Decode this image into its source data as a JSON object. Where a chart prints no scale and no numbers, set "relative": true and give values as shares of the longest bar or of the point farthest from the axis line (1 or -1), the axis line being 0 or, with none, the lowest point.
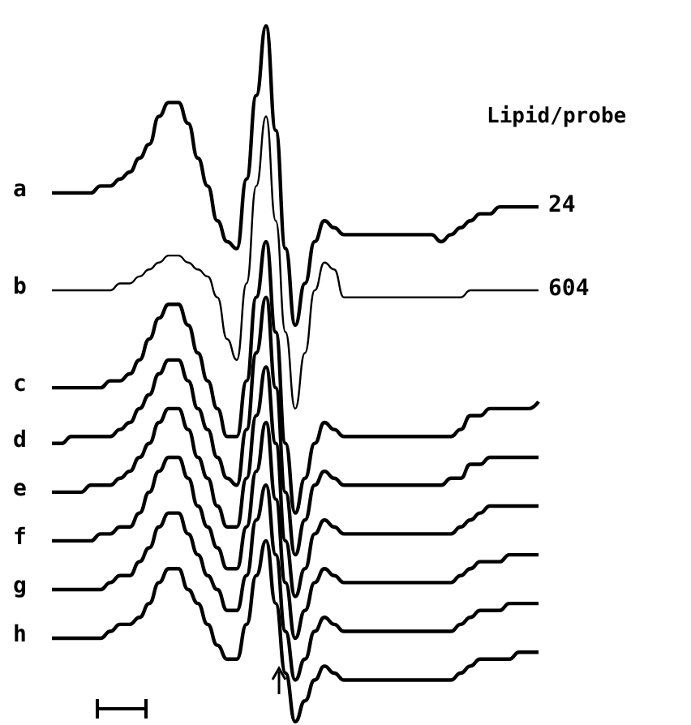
{
  "chart_data": {
    "type": "line",
    "relative": true,
    "marker": "none",
    "categories": [
      null,
      null,
      null,
      null,
      null,
      null,
      null,
      null,
      null,
      null,
      null,
      null,
      null,
      null,
      null,
      null,
      null,
      null,
      null,
      null,
      null,
      null,
      null,
      null,
      null,
      null,
      null,
      null,
      null,
      null,
      null,
      null,
      null,
      null,
      null,
      null,
      null,
      null,
      null,
      null,
      null,
      null,
      null,
      null,
      null,
      null,
      null,
      null,
      null,
      null,
      null
    ],
    "annotations": [
      "Lipid/probe",
      "24",
      "604"
    ],
    "series": [
      {
        "name": "a",
        "color": "#000000",
        "values": [
          0.76,
          0.76,
          0.76,
          0.76,
          0.76,
          0.77,
          0.77,
          0.78,
          0.79,
          0.81,
          0.83,
          0.87,
          0.89,
          0.89,
          0.86,
          0.81,
          0.77,
          0.72,
          0.69,
          0.68,
          0.78,
          0.9,
          1,
          0.85,
          0.68,
          0.57,
          0.63,
          0.69,
          0.72,
          0.71,
          0.7,
          0.7,
          0.7,
          0.7,
          0.7,
          0.7,
          0.7,
          0.7,
          0.7,
          0.7,
          0.69,
          0.7,
          0.71,
          0.72,
          0.73,
          0.73,
          0.74,
          0.74,
          0.74,
          0.74,
          0.74
        ]
      },
      {
        "name": "b",
        "color": "#000000",
        "values": [
          0.62,
          0.62,
          0.62,
          0.62,
          0.62,
          0.62,
          0.62,
          0.63,
          0.63,
          0.64,
          0.65,
          0.66,
          0.67,
          0.67,
          0.66,
          0.65,
          0.64,
          0.61,
          0.55,
          0.52,
          0.63,
          0.77,
          0.87,
          0.72,
          0.56,
          0.45,
          0.53,
          0.62,
          0.66,
          0.65,
          0.61,
          0.61,
          0.61,
          0.61,
          0.61,
          0.61,
          0.61,
          0.61,
          0.61,
          0.61,
          0.61,
          0.61,
          0.61,
          0.62,
          0.62,
          0.62,
          0.62,
          0.62,
          0.62,
          0.62,
          0.62
        ]
      },
      {
        "name": "c",
        "color": "#000000",
        "values": [
          0.48,
          0.48,
          0.48,
          0.48,
          0.48,
          0.48,
          0.49,
          0.49,
          0.5,
          0.52,
          0.55,
          0.58,
          0.6,
          0.6,
          0.57,
          0.53,
          0.49,
          0.45,
          0.41,
          0.41,
          0.49,
          0.61,
          0.69,
          0.56,
          0.4,
          0.3,
          0.35,
          0.4,
          0.43,
          0.42,
          0.41,
          0.41,
          0.41,
          0.41,
          0.41,
          0.41,
          0.41,
          0.41,
          0.41,
          0.41,
          0.41,
          0.41,
          0.42,
          0.44,
          0.44,
          0.45,
          0.45,
          0.45,
          0.45,
          0.45,
          0.46
        ]
      },
      {
        "name": "d",
        "color": "#000000",
        "values": [
          0.4,
          0.4,
          0.41,
          0.41,
          0.41,
          0.41,
          0.41,
          0.42,
          0.43,
          0.45,
          0.47,
          0.5,
          0.52,
          0.52,
          0.49,
          0.45,
          0.42,
          0.38,
          0.35,
          0.34,
          0.42,
          0.53,
          0.61,
          0.48,
          0.33,
          0.24,
          0.29,
          0.34,
          0.36,
          0.35,
          0.34,
          0.34,
          0.34,
          0.34,
          0.34,
          0.34,
          0.34,
          0.34,
          0.34,
          0.34,
          0.34,
          0.35,
          0.35,
          0.37,
          0.37,
          0.38,
          0.38,
          0.38,
          0.38,
          0.38,
          0.38
        ]
      },
      {
        "name": "e",
        "color": "#000000",
        "values": [
          0.33,
          0.33,
          0.33,
          0.33,
          0.34,
          0.34,
          0.34,
          0.35,
          0.36,
          0.38,
          0.4,
          0.43,
          0.45,
          0.45,
          0.42,
          0.38,
          0.35,
          0.31,
          0.28,
          0.28,
          0.35,
          0.44,
          0.51,
          0.4,
          0.26,
          0.18,
          0.22,
          0.27,
          0.29,
          0.28,
          0.27,
          0.27,
          0.27,
          0.27,
          0.27,
          0.27,
          0.27,
          0.27,
          0.27,
          0.27,
          0.27,
          0.27,
          0.28,
          0.29,
          0.3,
          0.31,
          0.31,
          0.31,
          0.31,
          0.31,
          0.31
        ]
      },
      {
        "name": "f",
        "color": "#000000",
        "values": [
          0.26,
          0.26,
          0.26,
          0.26,
          0.26,
          0.27,
          0.27,
          0.28,
          0.28,
          0.3,
          0.33,
          0.36,
          0.38,
          0.38,
          0.35,
          0.31,
          0.28,
          0.25,
          0.22,
          0.22,
          0.28,
          0.36,
          0.43,
          0.32,
          0.2,
          0.12,
          0.16,
          0.2,
          0.22,
          0.21,
          0.2,
          0.2,
          0.2,
          0.2,
          0.2,
          0.2,
          0.2,
          0.2,
          0.2,
          0.2,
          0.2,
          0.2,
          0.21,
          0.22,
          0.23,
          0.23,
          0.23,
          0.24,
          0.24,
          0.24,
          0.24
        ]
      },
      {
        "name": "g",
        "color": "#000000",
        "values": [
          0.19,
          0.19,
          0.19,
          0.19,
          0.19,
          0.19,
          0.2,
          0.21,
          0.21,
          0.23,
          0.25,
          0.28,
          0.3,
          0.3,
          0.27,
          0.24,
          0.21,
          0.19,
          0.16,
          0.16,
          0.21,
          0.29,
          0.34,
          0.24,
          0.13,
          0.06,
          0.09,
          0.13,
          0.15,
          0.14,
          0.13,
          0.13,
          0.13,
          0.13,
          0.13,
          0.13,
          0.13,
          0.13,
          0.13,
          0.13,
          0.13,
          0.13,
          0.14,
          0.15,
          0.16,
          0.16,
          0.16,
          0.17,
          0.17,
          0.17,
          0.17
        ]
      },
      {
        "name": "h",
        "color": "#000000",
        "values": [
          0.12,
          0.12,
          0.12,
          0.12,
          0.12,
          0.12,
          0.13,
          0.14,
          0.14,
          0.15,
          0.17,
          0.2,
          0.22,
          0.22,
          0.19,
          0.17,
          0.14,
          0.11,
          0.09,
          0.09,
          0.14,
          0.21,
          0.26,
          0.17,
          0.07,
          0,
          0.03,
          0.06,
          0.08,
          0.07,
          0.06,
          0.06,
          0.06,
          0.06,
          0.06,
          0.06,
          0.06,
          0.06,
          0.06,
          0.06,
          0.06,
          0.06,
          0.07,
          0.08,
          0.09,
          0.09,
          0.09,
          0.09,
          0.1,
          0.1,
          0.1
        ]
      }
    ]
  }
}
